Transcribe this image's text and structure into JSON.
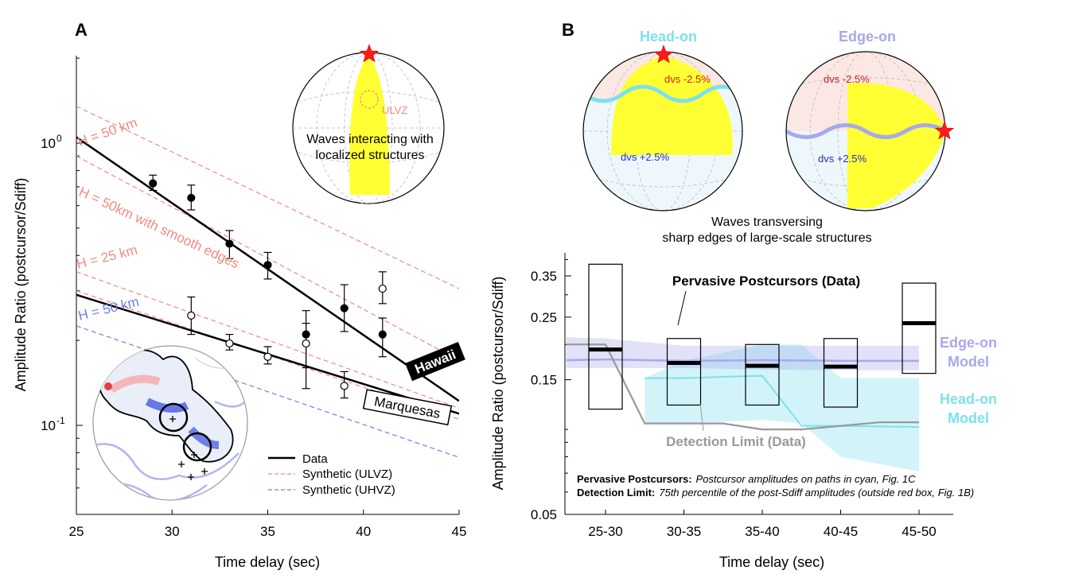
{
  "panels": {
    "a": "A",
    "b": "B"
  },
  "panelA": {
    "ylabel": "Amplitude Ratio (postcursor/Sdiff)",
    "xlabel": "Time delay (sec)",
    "xticks": [
      "25",
      "30",
      "35",
      "40",
      "45"
    ],
    "ytick_base": [
      "10",
      "10"
    ],
    "ytick_exp": [
      "0",
      "-1"
    ],
    "model_labels": {
      "ulvz50": "H = 50 km",
      "smooth": "H = 50km with smooth edges",
      "ulvz25": "H = 25 km",
      "uhvz50": "H = 50 km"
    },
    "site_labels": {
      "hawaii": "Hawaii",
      "marquesas": "Marquesas"
    },
    "legend": {
      "data": "Data",
      "ulvz": "Synthetic (ULVZ)",
      "uhvz": "Synthetic (UHVZ)"
    },
    "inset": {
      "ulvz_tag": "ULVZ",
      "caption_line1": "Waves interacting with",
      "caption_line2": "localized structures"
    }
  },
  "panelB": {
    "headon_title": "Head-on",
    "edgeon_title": "Edge-on",
    "dvs_neg": "dvs -2.5%",
    "dvs_pos": "dvs +2.5%",
    "caption_line1": "Waves transversing",
    "caption_line2": "sharp edges of large-scale structures",
    "ylabel": "Amplitude Ratio (postcursor/Sdiff)",
    "xlabel": "Time delay (sec)",
    "yticks": [
      "0.35",
      "0.25",
      "0.15",
      "0.05"
    ],
    "xticks": [
      "25-30",
      "30-35",
      "35-40",
      "40-45",
      "45-50"
    ],
    "label_pervasive": "Pervasive Postcursors (Data)",
    "label_edgeon_1": "Edge-on",
    "label_edgeon_2": "Model",
    "label_headon_1": "Head-on",
    "label_headon_2": "Model",
    "label_detection": "Detection Limit (Data)",
    "note1_bold": "Pervasive Postcursors:",
    "note1_italic": "Postcursor amplitudes on paths in cyan, Fig. 1C",
    "note2_bold": "Detection Limit:",
    "note2_italic": "75th percentile of the post-Sdiff amplitudes (outside red box, Fig. 1B)"
  },
  "colors": {
    "ulvz": "#f08a80",
    "uhvz": "#6a7fe8",
    "edgeon": "#a8a8ec",
    "headon": "#7ee0ee",
    "detection": "#999999",
    "highlight": "#ffff33",
    "star": "#ff1a1a"
  },
  "chart_data": [
    {
      "type": "scatter",
      "panel": "A",
      "xlabel": "Time delay (sec)",
      "ylabel": "Amplitude Ratio (postcursor/Sdiff)",
      "xlim": [
        25,
        45
      ],
      "ylim": [
        0.055,
        2.2
      ],
      "yscale": "log",
      "series": [
        {
          "name": "Hawaii",
          "marker": "filled",
          "x": [
            29,
            31,
            33,
            35,
            37,
            39,
            41
          ],
          "y": [
            0.72,
            0.64,
            0.44,
            0.37,
            0.21,
            0.26,
            0.21
          ],
          "yerr_low": [
            0.68,
            0.58,
            0.39,
            0.33,
            0.16,
            0.215,
            0.175
          ],
          "yerr_high": [
            0.77,
            0.71,
            0.49,
            0.41,
            0.255,
            0.315,
            0.24
          ]
        },
        {
          "name": "Marquesas",
          "marker": "open",
          "x": [
            31,
            33,
            35,
            37,
            39,
            41
          ],
          "y": [
            0.245,
            0.195,
            0.175,
            0.195,
            0.138,
            0.305
          ],
          "yerr_low": [
            0.21,
            0.185,
            0.165,
            0.135,
            0.125,
            0.27
          ],
          "yerr_high": [
            0.285,
            0.21,
            0.19,
            0.23,
            0.155,
            0.35
          ]
        }
      ],
      "fits": [
        {
          "name": "Hawaii",
          "x": [
            25,
            45
          ],
          "y": [
            1.05,
            0.122
          ]
        },
        {
          "name": "Marquesas",
          "x": [
            25,
            45
          ],
          "y": [
            0.29,
            0.11
          ]
        }
      ],
      "synthetics_ulvz": [
        {
          "x": [
            25,
            45
          ],
          "y": [
            1.35,
            0.305
          ]
        },
        {
          "x": [
            25,
            45
          ],
          "y": [
            0.9,
            0.17
          ]
        },
        {
          "x": [
            25,
            45
          ],
          "y": [
            0.35,
            0.115
          ]
        },
        {
          "x": [
            25,
            45
          ],
          "y": [
            0.3,
            0.105
          ]
        }
      ],
      "synthetics_uhvz": [
        {
          "x": [
            25,
            45
          ],
          "y": [
            0.225,
            0.077
          ]
        }
      ]
    },
    {
      "type": "bar",
      "panel": "B",
      "xlabel": "Time delay (sec)",
      "ylabel": "Amplitude Ratio (postcursor/Sdiff)",
      "yscale": "log",
      "ylim": [
        0.05,
        0.42
      ],
      "categories": [
        "25-30",
        "30-35",
        "35-40",
        "40-45",
        "45-50"
      ],
      "boxes": [
        {
          "category": "25-30",
          "low": 0.118,
          "high": 0.385,
          "median": 0.192
        },
        {
          "category": "30-35",
          "low": 0.122,
          "high": 0.21,
          "median": 0.172
        },
        {
          "category": "35-40",
          "low": 0.122,
          "high": 0.2,
          "median": 0.168
        },
        {
          "category": "40-45",
          "low": 0.12,
          "high": 0.21,
          "median": 0.167
        },
        {
          "category": "45-50",
          "low": 0.158,
          "high": 0.33,
          "median": 0.238
        }
      ],
      "series": [
        {
          "name": "Edge-on Model",
          "x": [
            25,
            27.5,
            32.5,
            37.5,
            42.5,
            47.5
          ],
          "y": [
            0.176,
            0.177,
            0.175,
            0.176,
            0.175,
            0.175
          ],
          "band_low": [
            0.165,
            0.165,
            0.165,
            0.163,
            0.162,
            0.162
          ],
          "band_high": [
            0.212,
            0.21,
            0.198,
            0.198,
            0.198,
            0.198
          ]
        },
        {
          "name": "Head-on Model",
          "x": [
            30,
            32.5,
            37.5,
            40,
            42.5,
            47.5
          ],
          "y": [
            0.152,
            0.152,
            0.155,
            0.103,
            0.103,
            0.102
          ],
          "band_low": [
            0.105,
            0.105,
            0.108,
            0.105,
            0.08,
            0.071
          ],
          "band_high": [
            0.152,
            0.175,
            0.2,
            0.2,
            0.152,
            0.152
          ]
        },
        {
          "name": "Detection Limit (Data)",
          "x": [
            25,
            27.5,
            30,
            35,
            37.5,
            40,
            45,
            47.5
          ],
          "y": [
            0.2,
            0.2,
            0.105,
            0.105,
            0.1,
            0.1,
            0.106,
            0.106
          ]
        }
      ]
    }
  ]
}
